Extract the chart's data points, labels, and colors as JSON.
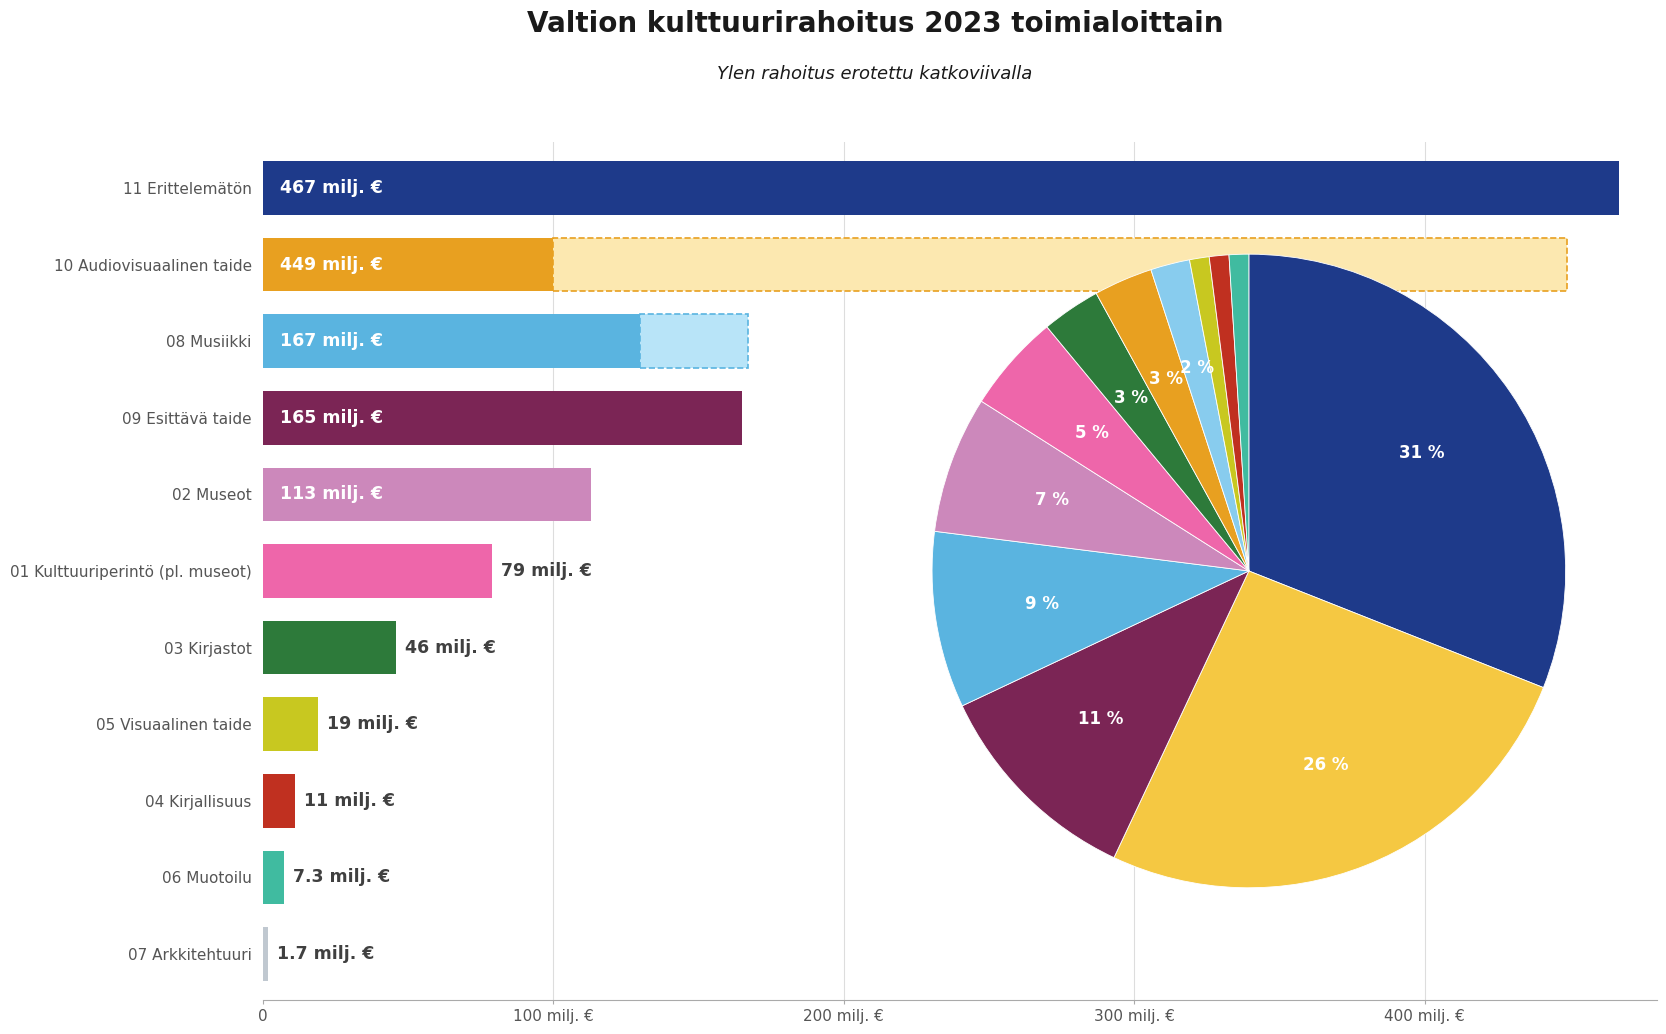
{
  "title": "Valtion kulttuurirahoitus 2023 toimialoittain",
  "subtitle": "Ylen rahoitus erotettu katkoviivalla",
  "categories": [
    "11 Erittelemätön",
    "10 Audiovisuaalinen taide",
    "08 Musiikki",
    "09 Esittävä taide",
    "02 Museot",
    "01 Kulttuuriperintö (pl. museot)",
    "03 Kirjastot",
    "05 Visuaalinen taide",
    "04 Kirjallisuus",
    "06 Muotoilu",
    "07 Arkkitehtuuri"
  ],
  "values": [
    467,
    449,
    167,
    165,
    113,
    79,
    46,
    19,
    11,
    7.3,
    1.7
  ],
  "bar_colors": [
    "#1e3a8a",
    "#e8a020",
    "#5ab4e0",
    "#7b2555",
    "#cc88bb",
    "#ee66aa",
    "#2d7a3a",
    "#c8c820",
    "#c03020",
    "#40bba0",
    "#c0c8d0"
  ],
  "value_labels": [
    "467 milj. €",
    "449 milj. €",
    "167 milj. €",
    "165 milj. €",
    "113 milj. €",
    "79 milj. €",
    "46 milj. €",
    "19 milj. €",
    "11 milj. €",
    "7.3 milj. €",
    "1.7 milj. €"
  ],
  "label_inside": [
    true,
    true,
    true,
    true,
    true,
    false,
    false,
    false,
    false,
    false,
    false
  ],
  "yle_solid_value": 100,
  "musiikki_solid_value": 130,
  "xlim_max": 480,
  "xticks": [
    0,
    100,
    200,
    300,
    400
  ],
  "xtick_labels": [
    "0",
    "100 milj. €",
    "200 milj. €",
    "300 milj. €",
    "400 milj. €"
  ],
  "pie_percentages": [
    31,
    26,
    11,
    9,
    7,
    5,
    3,
    3,
    2,
    1,
    1,
    1
  ],
  "pie_colors": [
    "#1e3a8a",
    "#f5c842",
    "#7b2555",
    "#5ab4e0",
    "#cc88bb",
    "#ee66aa",
    "#2d7a3a",
    "#e8a020",
    "#88ccee",
    "#c8c820",
    "#c03020",
    "#40bba0"
  ],
  "pie_labels": [
    "31 %",
    "26 %",
    "11 %",
    "9 %",
    "7 %",
    "5 %",
    "3 %",
    "3 %",
    "2 %",
    "",
    "",
    ""
  ],
  "background_color": "#ffffff",
  "bar_label_color_inside": "#ffffff",
  "bar_label_color_outside": "#404040",
  "title_color": "#1a1a1a",
  "tick_color": "#555555",
  "grid_color": "#dddddd",
  "spine_color": "#aaaaaa"
}
